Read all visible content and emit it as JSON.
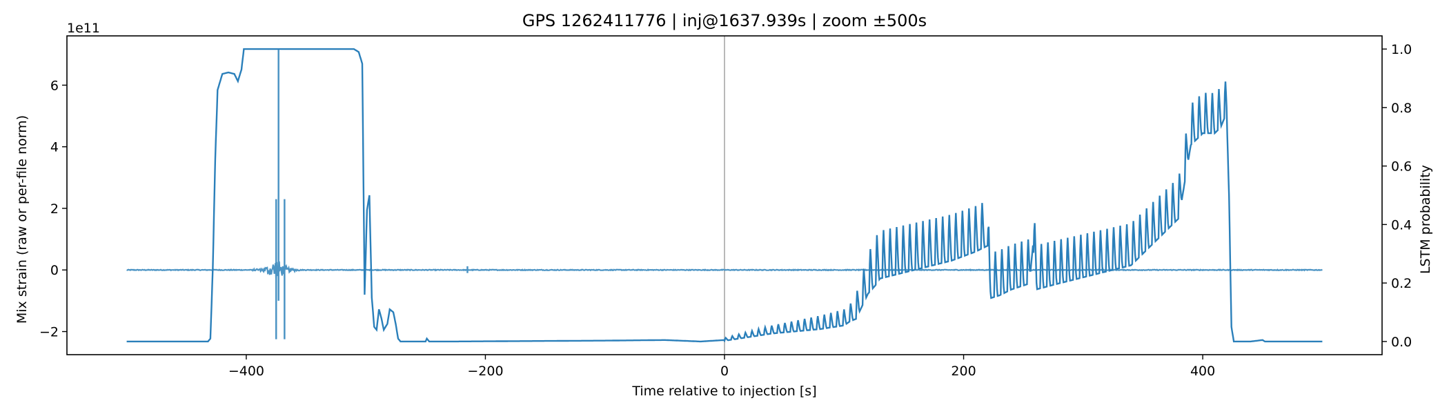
{
  "chart_data": {
    "type": "line",
    "title": "GPS 1262411776 | inj@1637.939s | zoom ±500s",
    "xlabel": "Time relative to injection [s]",
    "ylabel": "Mix strain (raw or per-file norm)",
    "y2label": "LSTM probability",
    "y_offset_label": "1e11",
    "xlim": [
      -550,
      550
    ],
    "ylim": [
      -2.75,
      7.6
    ],
    "y_scale_factor": 100000000000.0,
    "y2lim": [
      -0.045,
      1.045
    ],
    "xticks": [
      -400,
      -200,
      0,
      200,
      400
    ],
    "xtick_labels": [
      "−400",
      "−200",
      "0",
      "200",
      "400"
    ],
    "yticks": [
      -2,
      0,
      2,
      4,
      6
    ],
    "ytick_labels": [
      "−2",
      "0",
      "2",
      "4",
      "6"
    ],
    "y2ticks": [
      0.0,
      0.2,
      0.4,
      0.6,
      0.8,
      1.0
    ],
    "y2tick_labels": [
      "0.0",
      "0.2",
      "0.4",
      "0.6",
      "0.8",
      "1.0"
    ],
    "injection_marker_x": 0,
    "grid": false,
    "colors": {
      "strain": "#4c94c4",
      "probability": "#2a7fba",
      "marker": "#b8b8b8"
    },
    "series": [
      {
        "axis": "left",
        "x_range": [
          -500,
          500
        ],
        "baseline": 0,
        "noise_amplitude": 0.012,
        "bursts": [
          {
            "x": -375,
            "peak": 2.3,
            "trough": -2.25
          },
          {
            "x": -368,
            "peak": 2.3,
            "trough": -2.25
          },
          {
            "x": -373,
            "peak": 7.15,
            "trough": -1.0
          },
          {
            "x": -215,
            "peak": 0.12,
            "trough": -0.1
          }
        ]
      },
      {
        "axis": "right",
        "points": [
          [
            -500,
            0.0
          ],
          [
            -432,
            0.0
          ],
          [
            -430,
            0.01
          ],
          [
            -428,
            0.25
          ],
          [
            -426,
            0.62
          ],
          [
            -424,
            0.86
          ],
          [
            -420,
            0.915
          ],
          [
            -415,
            0.92
          ],
          [
            -410,
            0.915
          ],
          [
            -407,
            0.89
          ],
          [
            -404,
            0.93
          ],
          [
            -402,
            1.0
          ],
          [
            -380,
            1.0
          ],
          [
            -320,
            1.0
          ],
          [
            -310,
            1.0
          ],
          [
            -306,
            0.99
          ],
          [
            -303,
            0.95
          ],
          [
            -301,
            0.16
          ],
          [
            -299,
            0.45
          ],
          [
            -297,
            0.5
          ],
          [
            -295,
            0.15
          ],
          [
            -293,
            0.05
          ],
          [
            -291,
            0.04
          ],
          [
            -289,
            0.11
          ],
          [
            -287,
            0.08
          ],
          [
            -285,
            0.04
          ],
          [
            -282,
            0.06
          ],
          [
            -280,
            0.11
          ],
          [
            -277,
            0.1
          ],
          [
            -275,
            0.06
          ],
          [
            -273,
            0.01
          ],
          [
            -271,
            0.0
          ],
          [
            -250,
            0.0
          ],
          [
            -249,
            0.01
          ],
          [
            -247,
            0.0
          ],
          [
            -230,
            0.0
          ],
          [
            -100,
            0.003
          ],
          [
            -50,
            0.005
          ],
          [
            -20,
            0.0
          ],
          [
            0,
            0.005
          ],
          [
            20,
            0.02
          ],
          [
            40,
            0.035
          ],
          [
            60,
            0.045
          ],
          [
            80,
            0.055
          ],
          [
            100,
            0.07
          ],
          [
            110,
            0.1
          ],
          [
            120,
            0.2
          ],
          [
            130,
            0.26
          ],
          [
            150,
            0.28
          ],
          [
            170,
            0.3
          ],
          [
            190,
            0.32
          ],
          [
            210,
            0.35
          ],
          [
            215,
            0.36
          ],
          [
            220,
            0.37
          ],
          [
            222,
            0.19
          ],
          [
            230,
            0.2
          ],
          [
            240,
            0.22
          ],
          [
            255,
            0.24
          ],
          [
            258,
            0.37
          ],
          [
            261,
            0.22
          ],
          [
            280,
            0.24
          ],
          [
            300,
            0.26
          ],
          [
            320,
            0.28
          ],
          [
            340,
            0.3
          ],
          [
            360,
            0.38
          ],
          [
            380,
            0.46
          ],
          [
            390,
            0.71
          ],
          [
            400,
            0.75
          ],
          [
            410,
            0.75
          ],
          [
            415,
            0.77
          ],
          [
            418,
            0.8
          ],
          [
            420,
            0.78
          ],
          [
            422,
            0.5
          ],
          [
            424,
            0.05
          ],
          [
            426,
            0.0
          ],
          [
            440,
            0.0
          ],
          [
            450,
            0.005
          ],
          [
            452,
            0.0
          ],
          [
            500,
            0.0
          ]
        ],
        "oscillation": {
          "x_start": 0,
          "x_end": 420,
          "period": 5.5,
          "amplitude_start": 0.01,
          "amplitude_mid": 0.18,
          "amplitude_end": 0.15
        }
      }
    ]
  }
}
